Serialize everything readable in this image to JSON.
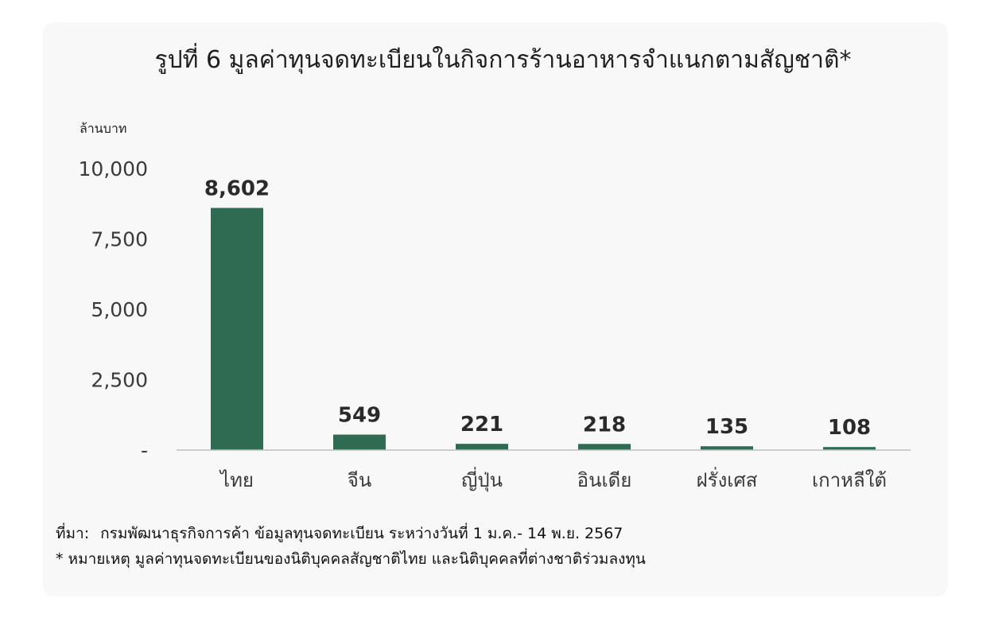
{
  "title": "รูปที่  6 มูลค่าทุนจดทะเบียนในกิจการร้านอาหารจำแนกตามสัญชาติ*",
  "unit": "ล้านบาท",
  "source": {
    "label": "ที่มา:",
    "text": "กรมพัฒนาธุรกิจการค้า ข้อมูลทุนจดทะเบียน ระหว่างวันที่ 1 ม.ค.- 14 พ.ย. 2567"
  },
  "note": "* หมายเหตุ มูลค่าทุนจดทะเบียนของนิติบุคคลสัญชาติไทย และนิติบุคคลที่ต่างชาติร่วมลงทุน",
  "colors": {
    "bar": "#2e6b52",
    "axis": "#bdbdbd",
    "tick_text": "#3a3a3a",
    "label_text": "#2a2a2a"
  },
  "chart_data": {
    "type": "bar",
    "categories": [
      "ไทย",
      "จีน",
      "ญี่ปุ่น",
      "อินเดีย",
      "ฝรั่งเศส",
      "เกาหลีใต้"
    ],
    "values": [
      8602,
      549,
      221,
      218,
      135,
      108
    ],
    "value_labels": [
      "8,602",
      "549",
      "221",
      "218",
      "135",
      "108"
    ],
    "ylabel": "ล้านบาท",
    "ylim": [
      0,
      10000
    ],
    "yticks": [
      0,
      2500,
      5000,
      7500,
      10000
    ],
    "ytick_labels": [
      "-",
      "2,500",
      "5,000",
      "7,500",
      "10,000"
    ],
    "grid": false,
    "legend": "none"
  }
}
